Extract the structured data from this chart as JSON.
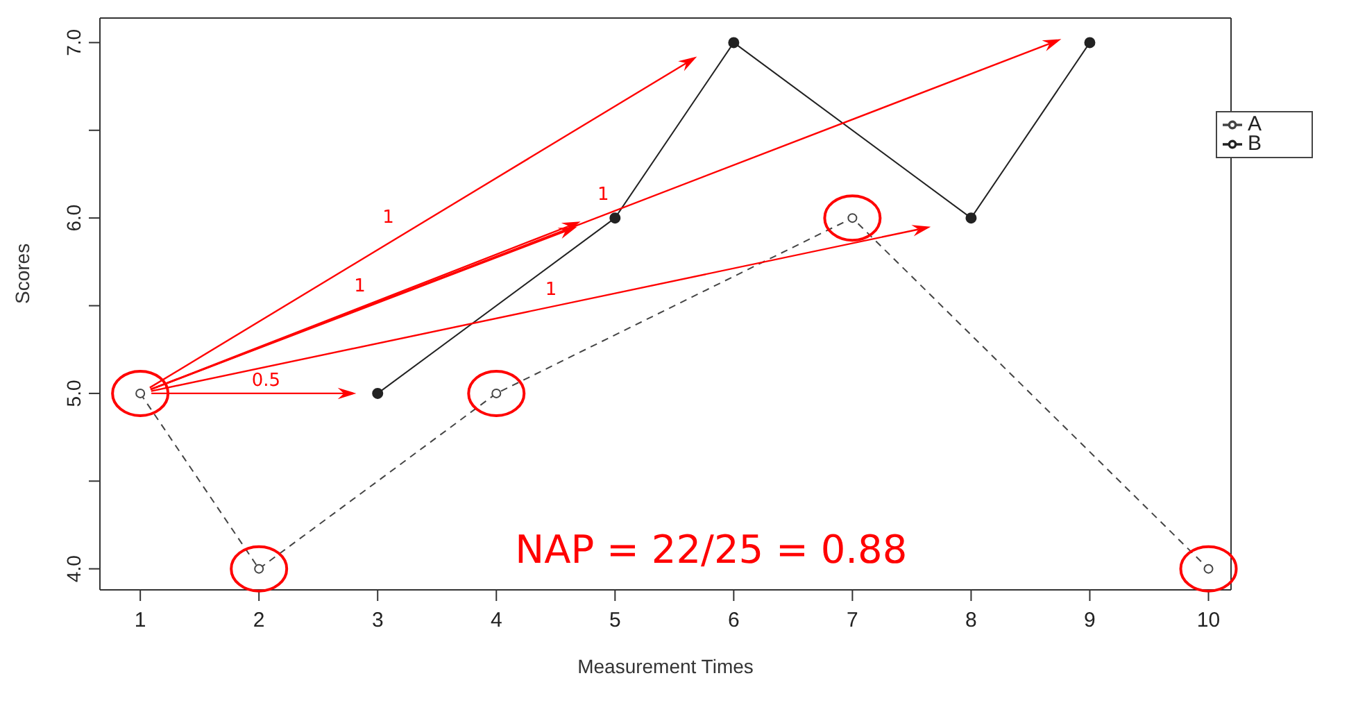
{
  "chart_data": {
    "type": "line",
    "xlabel": "Measurement Times",
    "ylabel": "Scores",
    "series": [
      {
        "name": "A",
        "color": "#444444",
        "x": [
          1,
          2,
          4,
          7,
          10
        ],
        "values": [
          5,
          4,
          5,
          6,
          4
        ],
        "line_style": "dashed"
      },
      {
        "name": "B",
        "color": "#222222",
        "x": [
          3,
          5,
          6,
          8,
          9
        ],
        "values": [
          5,
          6,
          7,
          6,
          7
        ],
        "line_style": "solid"
      }
    ],
    "xlim": [
      0.66,
      10.19
    ],
    "xticks": [
      1,
      2,
      3,
      4,
      5,
      6,
      7,
      8,
      9,
      10
    ],
    "ylim": [
      3.88,
      7.14
    ],
    "yticks": [
      {
        "value": 4,
        "label": "4.0"
      },
      {
        "value": 4.5,
        "label": null
      },
      {
        "value": 5,
        "label": "5.0"
      },
      {
        "value": 5.5,
        "label": null
      },
      {
        "value": 6,
        "label": "6.0"
      },
      {
        "value": 6.5,
        "label": null
      },
      {
        "value": 7,
        "label": "7.0"
      }
    ],
    "marker": "circle",
    "legend": "top right",
    "annotations": [
      "1",
      "1",
      "1",
      "1",
      "0.5",
      "NAP = 22/25 = 0.88"
    ]
  }
}
